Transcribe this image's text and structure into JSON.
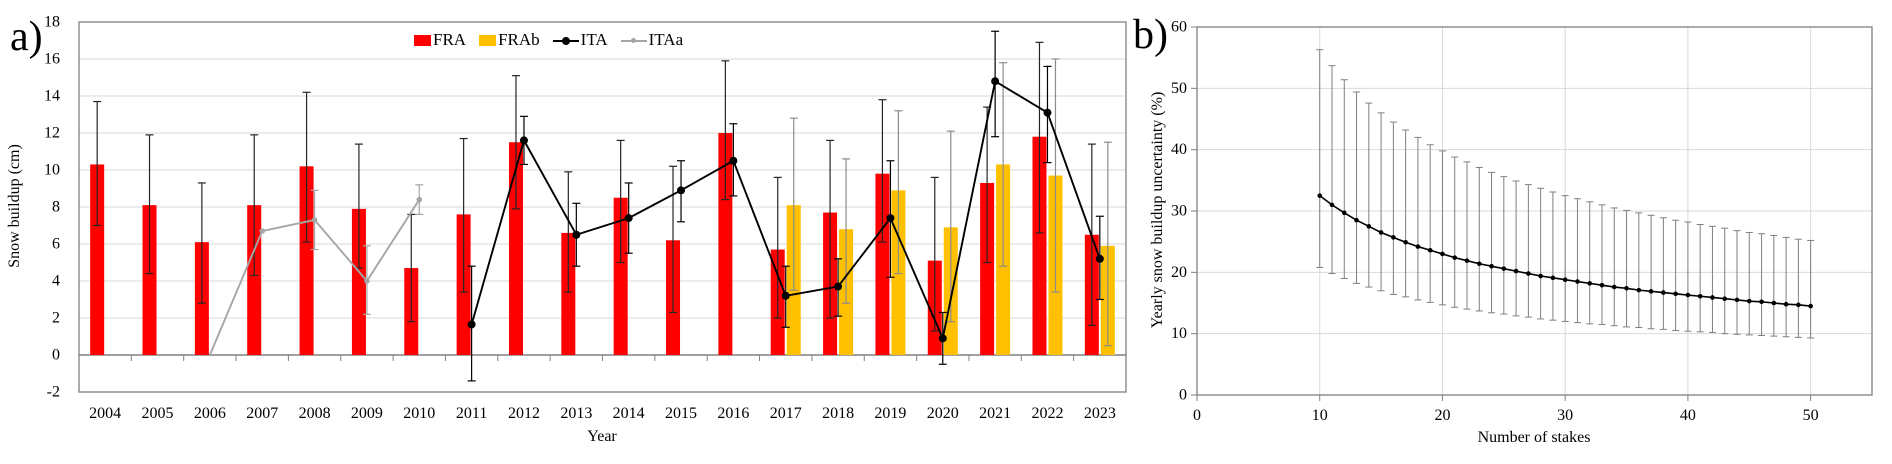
{
  "figure": {
    "background": "#FFFFFF",
    "grid_color": "#D9D9D9",
    "border_color": "#808080",
    "text_color": "#000000"
  },
  "chart_data": [
    {
      "type": "bar",
      "panel_label": "a)",
      "xlabel": "Year",
      "ylabel": "Snow buildup (cm)",
      "ylim": [
        -2,
        18
      ],
      "ytick_step": 2,
      "grid": "horizontal",
      "legend_position": "top-center-inside",
      "categories": [
        "2004",
        "2005",
        "2006",
        "2007",
        "2008",
        "2009",
        "2010",
        "2011",
        "2012",
        "2013",
        "2014",
        "2015",
        "2016",
        "2017",
        "2018",
        "2019",
        "2020",
        "2021",
        "2022",
        "2023"
      ],
      "series": [
        {
          "name": "FRA",
          "kind": "bar",
          "color": "#FF0000",
          "error_color": "#262626",
          "values": [
            10.3,
            8.1,
            6.1,
            8.1,
            10.2,
            7.9,
            4.7,
            7.6,
            11.5,
            6.6,
            8.5,
            6.2,
            12.0,
            5.7,
            7.7,
            9.8,
            5.1,
            9.3,
            11.8,
            6.5
          ],
          "err_lo": [
            7.0,
            4.4,
            2.8,
            4.3,
            6.1,
            4.7,
            1.8,
            3.4,
            7.9,
            3.4,
            5.0,
            2.3,
            8.4,
            2.0,
            2.0,
            6.1,
            1.3,
            5.0,
            6.6,
            1.6
          ],
          "err_hi": [
            13.7,
            11.9,
            9.3,
            11.9,
            14.2,
            11.4,
            7.6,
            11.7,
            15.1,
            9.9,
            11.6,
            10.2,
            15.9,
            9.6,
            11.6,
            13.8,
            9.6,
            13.4,
            16.9,
            11.4
          ]
        },
        {
          "name": "FRAb",
          "kind": "bar",
          "color": "#FFC000",
          "error_color": "#8C8C8C",
          "values": [
            null,
            null,
            null,
            null,
            null,
            null,
            null,
            null,
            null,
            null,
            null,
            null,
            null,
            8.1,
            6.8,
            8.9,
            6.9,
            10.3,
            9.7,
            5.9
          ],
          "err_lo": [
            null,
            null,
            null,
            null,
            null,
            null,
            null,
            null,
            null,
            null,
            null,
            null,
            null,
            3.5,
            2.8,
            4.4,
            1.8,
            4.8,
            3.4,
            0.5
          ],
          "err_hi": [
            null,
            null,
            null,
            null,
            null,
            null,
            null,
            null,
            null,
            null,
            null,
            null,
            null,
            12.8,
            10.6,
            13.2,
            12.1,
            15.8,
            16.0,
            11.5
          ]
        },
        {
          "name": "ITA",
          "kind": "line",
          "color": "#000000",
          "error_color": "#000000",
          "marker_radius": 4,
          "values": [
            null,
            null,
            null,
            null,
            null,
            null,
            null,
            1.65,
            11.6,
            6.5,
            7.4,
            8.9,
            10.5,
            3.2,
            3.7,
            7.4,
            0.9,
            14.8,
            13.1,
            5.2
          ],
          "err_lo": [
            null,
            null,
            null,
            null,
            null,
            null,
            null,
            -1.4,
            10.3,
            4.8,
            5.5,
            7.2,
            8.6,
            1.5,
            2.1,
            4.2,
            -0.5,
            11.8,
            10.4,
            3.0
          ],
          "err_hi": [
            null,
            null,
            null,
            null,
            null,
            null,
            null,
            4.8,
            12.9,
            8.2,
            9.3,
            10.5,
            12.5,
            4.8,
            5.2,
            10.5,
            2.3,
            17.5,
            15.6,
            7.5
          ]
        },
        {
          "name": "ITAa",
          "kind": "line",
          "color": "#A6A6A6",
          "error_color": "#A6A6A6",
          "marker_radius": 2.8,
          "values": [
            null,
            null,
            0,
            6.7,
            7.3,
            4.0,
            8.4,
            null,
            null,
            null,
            null,
            null,
            null,
            null,
            null,
            null,
            null,
            null,
            null,
            null
          ],
          "err_lo": [
            null,
            null,
            null,
            null,
            5.7,
            2.2,
            7.6,
            null,
            null,
            null,
            null,
            null,
            null,
            null,
            null,
            null,
            null,
            null,
            null,
            null
          ],
          "err_hi": [
            null,
            null,
            null,
            null,
            8.9,
            5.9,
            9.2,
            null,
            null,
            null,
            null,
            null,
            null,
            null,
            null,
            null,
            null,
            null,
            null,
            null
          ]
        }
      ]
    },
    {
      "type": "line",
      "panel_label": "b)",
      "xlabel": "Number of stakes",
      "ylabel": "Yearly snow buildup uncertainty (%)",
      "xlim": [
        0,
        55
      ],
      "ylim": [
        0,
        60
      ],
      "xticks": [
        0,
        10,
        20,
        30,
        40,
        50
      ],
      "ytick_step": 10,
      "grid": "both",
      "line_color": "#000000",
      "error_color": "#7F7F7F",
      "x": [
        10,
        11,
        12,
        13,
        14,
        15,
        16,
        17,
        18,
        19,
        20,
        21,
        22,
        23,
        24,
        25,
        26,
        27,
        28,
        29,
        30,
        31,
        32,
        33,
        34,
        35,
        36,
        37,
        38,
        39,
        40,
        41,
        42,
        43,
        44,
        45,
        46,
        47,
        48,
        49,
        50
      ],
      "values": [
        32.5,
        31.0,
        29.7,
        28.5,
        27.5,
        26.5,
        25.7,
        24.9,
        24.2,
        23.6,
        23.0,
        22.4,
        21.9,
        21.4,
        21.0,
        20.6,
        20.2,
        19.8,
        19.4,
        19.1,
        18.8,
        18.5,
        18.2,
        17.9,
        17.6,
        17.4,
        17.1,
        16.9,
        16.7,
        16.5,
        16.3,
        16.1,
        15.9,
        15.7,
        15.5,
        15.3,
        15.2,
        15.0,
        14.8,
        14.7,
        14.5
      ],
      "err_hi": [
        56.3,
        53.7,
        51.4,
        49.4,
        47.6,
        46.0,
        44.5,
        43.2,
        42.0,
        40.8,
        39.8,
        38.8,
        38.0,
        37.1,
        36.3,
        35.6,
        34.9,
        34.3,
        33.7,
        33.1,
        32.5,
        32.0,
        31.5,
        31.0,
        30.5,
        30.1,
        29.7,
        29.3,
        28.9,
        28.5,
        28.2,
        27.8,
        27.5,
        27.2,
        26.8,
        26.5,
        26.3,
        26.0,
        25.7,
        25.4,
        25.2
      ],
      "err_lo": [
        20.8,
        19.8,
        19.0,
        18.2,
        17.6,
        17.0,
        16.4,
        16.0,
        15.5,
        15.1,
        14.7,
        14.3,
        14.0,
        13.7,
        13.4,
        13.2,
        12.9,
        12.7,
        12.4,
        12.2,
        12.0,
        11.8,
        11.6,
        11.5,
        11.3,
        11.1,
        11.0,
        10.8,
        10.7,
        10.5,
        10.4,
        10.3,
        10.2,
        10.0,
        9.9,
        9.8,
        9.7,
        9.6,
        9.5,
        9.4,
        9.3
      ]
    }
  ]
}
